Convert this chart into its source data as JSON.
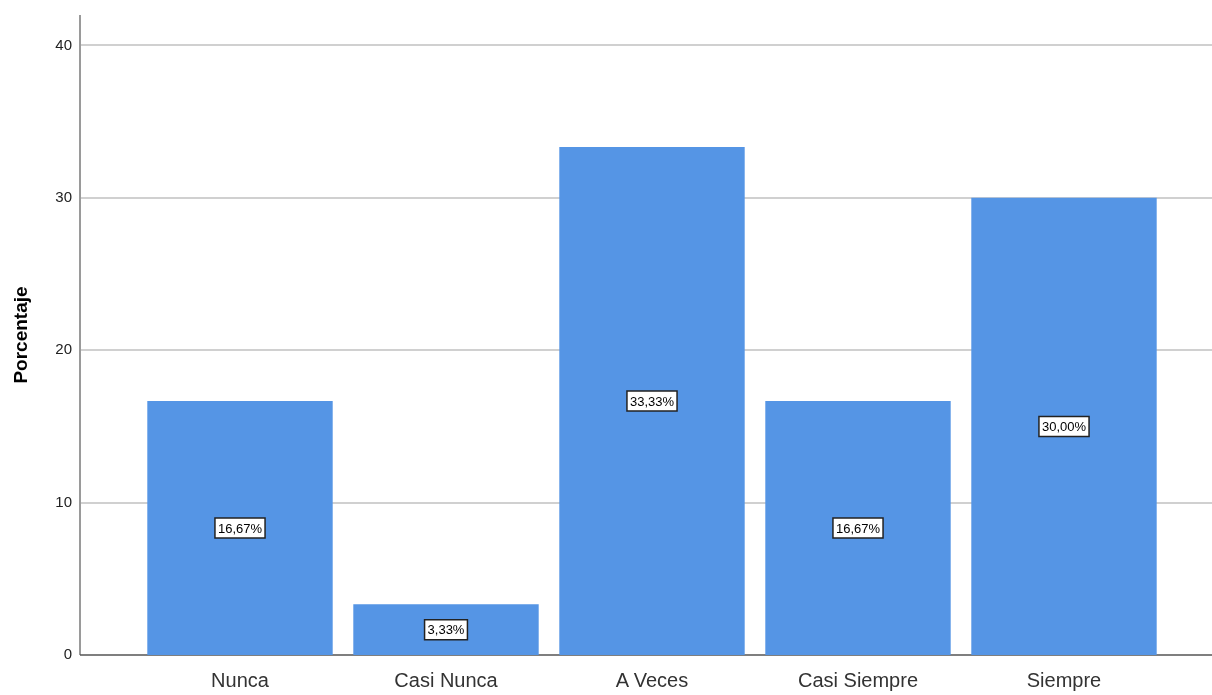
{
  "chart_data": {
    "type": "bar",
    "ylabel": "Porcentaje",
    "categories": [
      "Nunca",
      "Casi Nunca",
      "A Veces",
      "Casi Siempre",
      "Siempre"
    ],
    "values": [
      16.67,
      3.33,
      33.33,
      16.67,
      30.0
    ],
    "value_labels": [
      "16,67%",
      "3,33%",
      "33,33%",
      "16,67%",
      "30,00%"
    ],
    "color": "#5595e5",
    "ylim": [
      0,
      42
    ],
    "yticks": [
      0,
      10,
      20,
      30,
      40
    ],
    "grid": "y"
  }
}
